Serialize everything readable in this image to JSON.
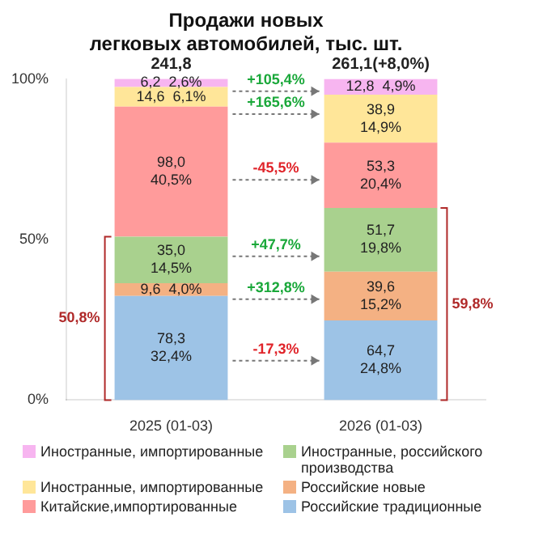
{
  "chart_data": {
    "type": "bar",
    "stacked": true,
    "title": [
      "Продажи новых",
      "легковых автомобилей, тыс. шт."
    ],
    "categories": [
      "2025 (01-03)",
      "2026 (01-03)"
    ],
    "series": [
      {
        "name": "Российские традиционные",
        "color": "#9dc3e6",
        "values": [
          32.4,
          24.8
        ],
        "value_labels": [
          "78,3\n32,4%",
          "64,7\n24,8%"
        ]
      },
      {
        "name": "Российские новые",
        "color": "#f4b183",
        "values": [
          4.0,
          15.2
        ],
        "value_labels": [
          "9,6  4,0%",
          "39,6\n15,2%"
        ]
      },
      {
        "name": "Иностранные, российского производства",
        "color": "#a9d18e",
        "values": [
          14.5,
          19.8
        ],
        "value_labels": [
          "35,0\n14,5%",
          "51,7\n19,8%"
        ]
      },
      {
        "name": "Китайские,импортированные",
        "color": "#ff9b9b",
        "values": [
          40.5,
          20.4
        ],
        "value_labels": [
          "98,0\n40,5%",
          "53,3\n20,4%"
        ]
      },
      {
        "name": "Иностранные, импортированные",
        "color": "#ffe699",
        "values": [
          6.1,
          14.9
        ],
        "value_labels": [
          "14,6  6,1%",
          "38,9\n14,9%"
        ]
      },
      {
        "name": "Иностранные, импортированные",
        "color": "#f7b5f0",
        "values": [
          2.6,
          4.9
        ],
        "value_labels": [
          "6,2  2,6%",
          "12,8  4,9%"
        ]
      }
    ],
    "annotations": [
      "-17,3%",
      "+312,8%",
      "+47,7%",
      "-45,5%",
      "+165,6%",
      "+105,4%",
      "50,8%",
      "59,8%",
      "241,8",
      "261,1(+8,0%)"
    ],
    "ylim": [
      0,
      100
    ],
    "yticks": [
      {
        "value": 0,
        "label": "0%"
      },
      {
        "value": 50,
        "label": "50%"
      },
      {
        "value": 100,
        "label": "100%"
      }
    ],
    "legend": "bottom"
  }
}
